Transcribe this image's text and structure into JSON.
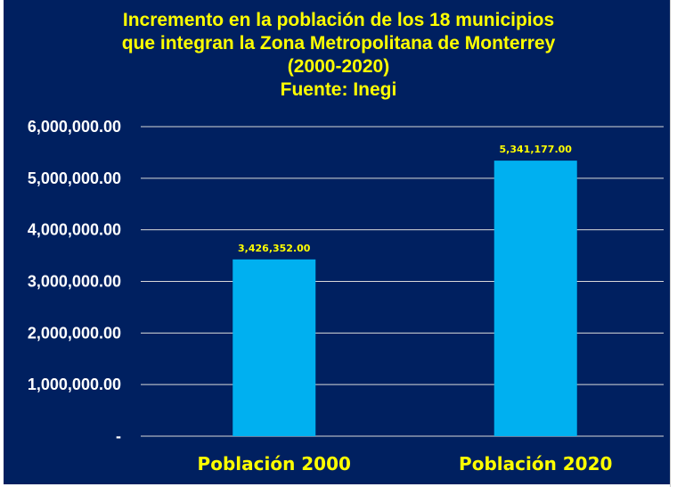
{
  "chart_data": {
    "type": "bar",
    "title_lines": [
      "Incremento en la población de los 18 municipios",
      "que integran la Zona Metropolitana de Monterrey",
      "(2000-2020)",
      "Fuente: Inegi"
    ],
    "categories": [
      "Población 2000",
      "Población 2020"
    ],
    "values": [
      3426352,
      5341177
    ],
    "data_labels": [
      "3,426,352.00",
      "5,341,177.00"
    ],
    "yticks": [
      "-",
      "1,000,000.00",
      "2,000,000.00",
      "3,000,000.00",
      "4,000,000.00",
      "5,000,000.00",
      "6,000,000.00"
    ],
    "ylim": [
      0,
      6000000
    ],
    "grid": true,
    "xlabel": "",
    "ylabel": "",
    "colors": {
      "background": "#002060",
      "bar": "#00B0F0",
      "title": "#FFFF00",
      "axis_text": "#FFFFFF",
      "grid": "#D9D9D9"
    }
  }
}
